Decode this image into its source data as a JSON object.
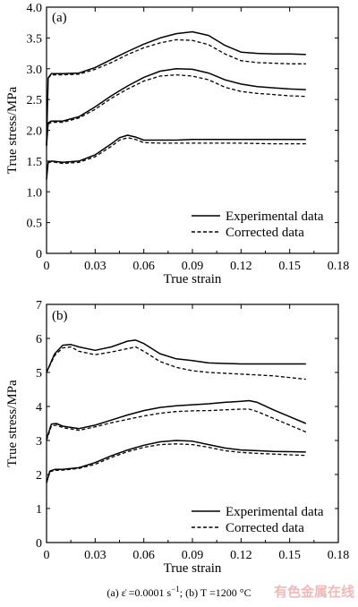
{
  "chart_data": [
    {
      "type": "line",
      "panel_label": "(a)",
      "xlabel": "True strain",
      "ylabel": "True stress/MPa",
      "xlim": [
        0,
        0.18
      ],
      "ylim": [
        0,
        4.0
      ],
      "xticks": [
        "0",
        "0.03",
        "0.06",
        "0.09",
        "0.12",
        "0.15",
        "0.18"
      ],
      "yticks": [
        "0",
        "0.5",
        "1.0",
        "1.5",
        "2.0",
        "2.5",
        "3.0",
        "3.5",
        "4.0"
      ],
      "legend": {
        "position": "bottom-right",
        "entries": [
          {
            "label": "Experimental data",
            "style": "solid"
          },
          {
            "label": "Corrected data",
            "style": "dashed"
          }
        ]
      },
      "grid": false,
      "series": [
        {
          "kind": "experimental",
          "style": "solid",
          "x": [
            0,
            0.001,
            0.003,
            0.01,
            0.02,
            0.03,
            0.04,
            0.05,
            0.06,
            0.07,
            0.08,
            0.09,
            0.1,
            0.11,
            0.12,
            0.13,
            0.14,
            0.15,
            0.16
          ],
          "y": [
            1.75,
            2.85,
            2.92,
            2.92,
            2.93,
            3.02,
            3.15,
            3.28,
            3.4,
            3.5,
            3.57,
            3.6,
            3.54,
            3.38,
            3.27,
            3.25,
            3.24,
            3.24,
            3.23
          ]
        },
        {
          "kind": "corrected",
          "style": "dashed",
          "x": [
            0.001,
            0.003,
            0.01,
            0.02,
            0.03,
            0.04,
            0.05,
            0.06,
            0.07,
            0.08,
            0.09,
            0.1,
            0.11,
            0.12,
            0.13,
            0.14,
            0.15,
            0.16
          ],
          "y": [
            2.85,
            2.9,
            2.9,
            2.91,
            2.99,
            3.1,
            3.23,
            3.34,
            3.42,
            3.47,
            3.46,
            3.39,
            3.24,
            3.13,
            3.1,
            3.09,
            3.08,
            3.08
          ]
        },
        {
          "kind": "experimental",
          "style": "solid",
          "x": [
            0,
            0.001,
            0.003,
            0.01,
            0.02,
            0.03,
            0.04,
            0.05,
            0.06,
            0.07,
            0.08,
            0.09,
            0.1,
            0.11,
            0.12,
            0.13,
            0.14,
            0.15,
            0.16
          ],
          "y": [
            1.75,
            2.12,
            2.15,
            2.15,
            2.22,
            2.38,
            2.56,
            2.72,
            2.86,
            2.96,
            3.0,
            2.99,
            2.93,
            2.82,
            2.75,
            2.71,
            2.69,
            2.67,
            2.66
          ]
        },
        {
          "kind": "corrected",
          "style": "dashed",
          "x": [
            0.001,
            0.003,
            0.01,
            0.02,
            0.03,
            0.04,
            0.05,
            0.06,
            0.07,
            0.08,
            0.09,
            0.1,
            0.11,
            0.12,
            0.13,
            0.14,
            0.15,
            0.16
          ],
          "y": [
            2.1,
            2.13,
            2.13,
            2.2,
            2.34,
            2.52,
            2.67,
            2.8,
            2.88,
            2.9,
            2.88,
            2.82,
            2.7,
            2.63,
            2.6,
            2.58,
            2.56,
            2.55
          ]
        },
        {
          "kind": "experimental",
          "style": "solid",
          "x": [
            0,
            0.001,
            0.003,
            0.01,
            0.02,
            0.03,
            0.04,
            0.045,
            0.05,
            0.055,
            0.06,
            0.07,
            0.08,
            0.09,
            0.1,
            0.12,
            0.14,
            0.16
          ],
          "y": [
            1.2,
            1.48,
            1.5,
            1.48,
            1.5,
            1.6,
            1.78,
            1.88,
            1.92,
            1.89,
            1.84,
            1.84,
            1.84,
            1.85,
            1.85,
            1.85,
            1.85,
            1.85
          ]
        },
        {
          "kind": "corrected",
          "style": "dashed",
          "x": [
            0.001,
            0.003,
            0.01,
            0.02,
            0.03,
            0.04,
            0.045,
            0.05,
            0.055,
            0.06,
            0.07,
            0.08,
            0.09,
            0.1,
            0.12,
            0.14,
            0.16
          ],
          "y": [
            1.47,
            1.49,
            1.46,
            1.48,
            1.57,
            1.74,
            1.84,
            1.88,
            1.85,
            1.8,
            1.79,
            1.79,
            1.79,
            1.79,
            1.79,
            1.78,
            1.78
          ]
        }
      ]
    },
    {
      "type": "line",
      "panel_label": "(b)",
      "xlabel": "True strain",
      "ylabel": "True stress/MPa",
      "xlim": [
        0,
        0.18
      ],
      "ylim": [
        0,
        7
      ],
      "xticks": [
        "0",
        "0.03",
        "0.06",
        "0.09",
        "0.12",
        "0.15",
        "0.18"
      ],
      "yticks": [
        "0",
        "1",
        "2",
        "3",
        "4",
        "5",
        "6",
        "7"
      ],
      "legend": {
        "position": "bottom-right",
        "entries": [
          {
            "label": "Experimental data",
            "style": "solid"
          },
          {
            "label": "Corrected data",
            "style": "dashed"
          }
        ]
      },
      "grid": false,
      "series": [
        {
          "kind": "experimental",
          "style": "solid",
          "x": [
            0,
            0.005,
            0.01,
            0.015,
            0.02,
            0.03,
            0.04,
            0.05,
            0.055,
            0.06,
            0.07,
            0.08,
            0.09,
            0.1,
            0.12,
            0.14,
            0.16
          ],
          "y": [
            5.0,
            5.55,
            5.8,
            5.82,
            5.75,
            5.65,
            5.75,
            5.92,
            5.95,
            5.85,
            5.55,
            5.4,
            5.35,
            5.28,
            5.25,
            5.25,
            5.25
          ]
        },
        {
          "kind": "corrected",
          "style": "dashed",
          "x": [
            0,
            0.005,
            0.01,
            0.015,
            0.02,
            0.03,
            0.04,
            0.05,
            0.055,
            0.06,
            0.07,
            0.08,
            0.09,
            0.1,
            0.12,
            0.14,
            0.16
          ],
          "y": [
            5.0,
            5.5,
            5.72,
            5.75,
            5.62,
            5.52,
            5.6,
            5.7,
            5.75,
            5.62,
            5.32,
            5.15,
            5.05,
            5.0,
            4.95,
            4.9,
            4.8
          ]
        },
        {
          "kind": "experimental",
          "style": "solid",
          "x": [
            0,
            0.003,
            0.006,
            0.01,
            0.02,
            0.03,
            0.04,
            0.05,
            0.06,
            0.07,
            0.08,
            0.09,
            0.1,
            0.11,
            0.12,
            0.125,
            0.13,
            0.14,
            0.15,
            0.16
          ],
          "y": [
            3.05,
            3.48,
            3.5,
            3.42,
            3.35,
            3.45,
            3.6,
            3.75,
            3.88,
            3.97,
            4.02,
            4.05,
            4.08,
            4.12,
            4.15,
            4.17,
            4.12,
            3.9,
            3.7,
            3.5
          ]
        },
        {
          "kind": "corrected",
          "style": "dashed",
          "x": [
            0,
            0.003,
            0.006,
            0.01,
            0.02,
            0.03,
            0.04,
            0.05,
            0.06,
            0.07,
            0.08,
            0.09,
            0.1,
            0.11,
            0.12,
            0.125,
            0.13,
            0.14,
            0.15,
            0.16
          ],
          "y": [
            3.0,
            3.43,
            3.45,
            3.38,
            3.3,
            3.4,
            3.52,
            3.62,
            3.72,
            3.8,
            3.85,
            3.87,
            3.88,
            3.9,
            3.92,
            3.92,
            3.85,
            3.65,
            3.45,
            3.25
          ]
        },
        {
          "kind": "experimental",
          "style": "solid",
          "x": [
            0,
            0.002,
            0.005,
            0.01,
            0.02,
            0.03,
            0.04,
            0.05,
            0.06,
            0.07,
            0.08,
            0.09,
            0.1,
            0.11,
            0.12,
            0.13,
            0.14,
            0.15,
            0.16
          ],
          "y": [
            1.75,
            2.1,
            2.15,
            2.15,
            2.2,
            2.35,
            2.55,
            2.72,
            2.86,
            2.96,
            3.0,
            2.98,
            2.88,
            2.78,
            2.72,
            2.7,
            2.68,
            2.67,
            2.66
          ]
        },
        {
          "kind": "corrected",
          "style": "dashed",
          "x": [
            0.002,
            0.005,
            0.01,
            0.02,
            0.03,
            0.04,
            0.05,
            0.06,
            0.07,
            0.08,
            0.09,
            0.1,
            0.11,
            0.12,
            0.13,
            0.14,
            0.15,
            0.16
          ],
          "y": [
            2.08,
            2.12,
            2.13,
            2.18,
            2.3,
            2.5,
            2.67,
            2.8,
            2.88,
            2.9,
            2.88,
            2.8,
            2.7,
            2.65,
            2.62,
            2.6,
            2.58,
            2.56
          ]
        }
      ]
    }
  ],
  "caption": {
    "part_a": "(a)  ε̇ =0.0001 s",
    "part_a_exp": "−1",
    "part_b": "; (b) T =1200 °C"
  },
  "watermark": "有色金属在线"
}
